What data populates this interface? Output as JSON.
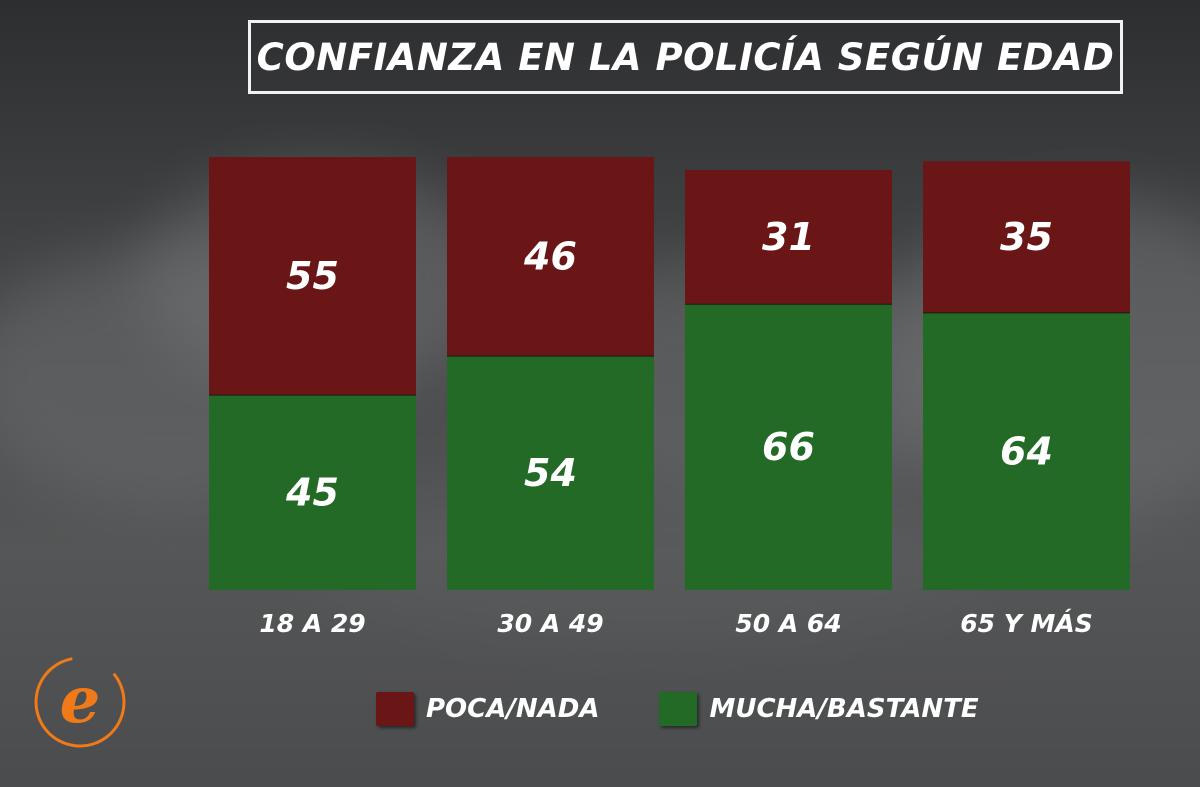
{
  "title": "CONFIANZA EN LA POLICÍA SEGÚN EDAD",
  "colors": {
    "poca": "#6a1516",
    "mucha": "#236a26",
    "logo_orange": "#f07a18"
  },
  "legend": {
    "poca_label": "POCA/NADA",
    "mucha_label": "MUCHA/BASTANTE"
  },
  "logo": {
    "letter": "e",
    "icon": "equipos-logo-icon"
  },
  "chart_data": {
    "type": "bar",
    "stacked": true,
    "categories": [
      "18 A 29",
      "30 A 49",
      "50 A 64",
      "65 Y MÁS"
    ],
    "series": [
      {
        "name": "MUCHA/BASTANTE",
        "values": [
          45,
          54,
          66,
          64
        ]
      },
      {
        "name": "POCA/NADA",
        "values": [
          55,
          46,
          31,
          35
        ]
      }
    ],
    "title": "CONFIANZA EN LA POLICÍA SEGÚN EDAD",
    "legend": "bottom",
    "grid": false
  }
}
